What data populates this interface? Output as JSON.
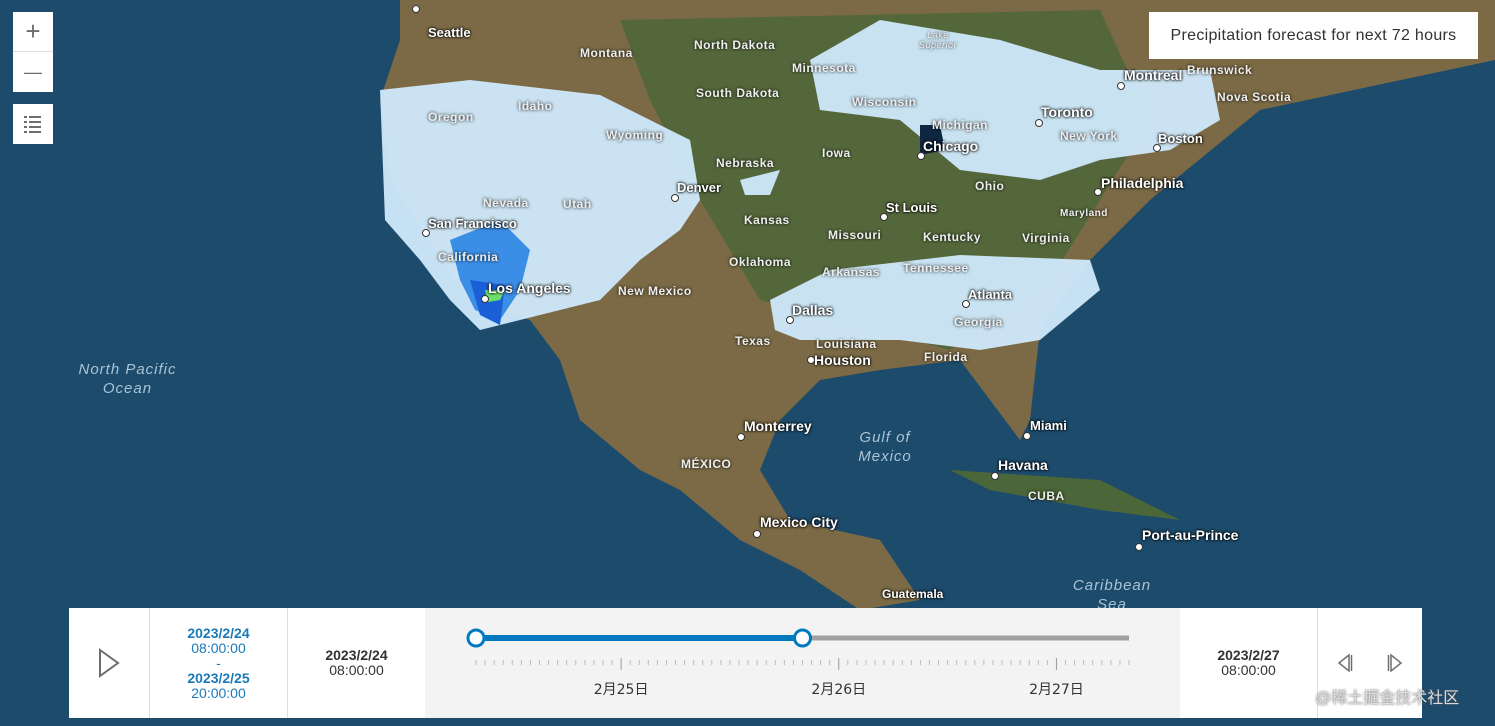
{
  "title": "Precipitation forecast for next 72 hours",
  "controls": {
    "zoom_in": "+",
    "zoom_out": "—",
    "legend": "list-icon"
  },
  "cities": [
    "Seattle",
    "San Francisco",
    "Los Angeles",
    "Denver",
    "St Louis",
    "Chicago",
    "Toronto",
    "Montreal",
    "Boston",
    "Philadelphia",
    "Dallas",
    "Houston",
    "Atlanta",
    "Monterrey",
    "Mexico City",
    "Miami",
    "Havana",
    "Port-au-Prince",
    "Guatemala"
  ],
  "regions": [
    "Montana",
    "North Dakota",
    "Minnesota",
    "South Dakota",
    "Idaho",
    "Oregon",
    "Wyoming",
    "Nebraska",
    "Iowa",
    "Wisconsin",
    "Michigan",
    "Nevada",
    "Utah",
    "California",
    "Kansas",
    "Missouri",
    "Kentucky",
    "Ohio",
    "Virginia",
    "Maryland",
    "Oklahoma",
    "Arkansas",
    "Tennessee",
    "New Mexico",
    "Texas",
    "Louisiana",
    "Georgia",
    "Florida",
    "New York",
    "Brunswick",
    "Nova Scotia",
    "MÉXICO",
    "CUBA",
    "Lake Superior"
  ],
  "seas": [
    "North Pacific Ocean",
    "Gulf of Mexico",
    "Caribbean Sea"
  ],
  "time_slider": {
    "play": "play-icon",
    "range_start_date": "2023/2/24",
    "range_start_time": "08:00:00",
    "range_sep": "-",
    "range_end_date": "2023/2/25",
    "range_end_time": "20:00:00",
    "min_date": "2023/2/24",
    "min_time": "08:00:00",
    "max_date": "2023/2/27",
    "max_time": "08:00:00",
    "tick_labels": [
      "2月25日",
      "2月26日",
      "2月27日"
    ],
    "thumb_start_fraction": 0,
    "thumb_end_fraction": 0.5,
    "accent": "#0079c1"
  },
  "watermark": "@稀土掘金技术社区"
}
